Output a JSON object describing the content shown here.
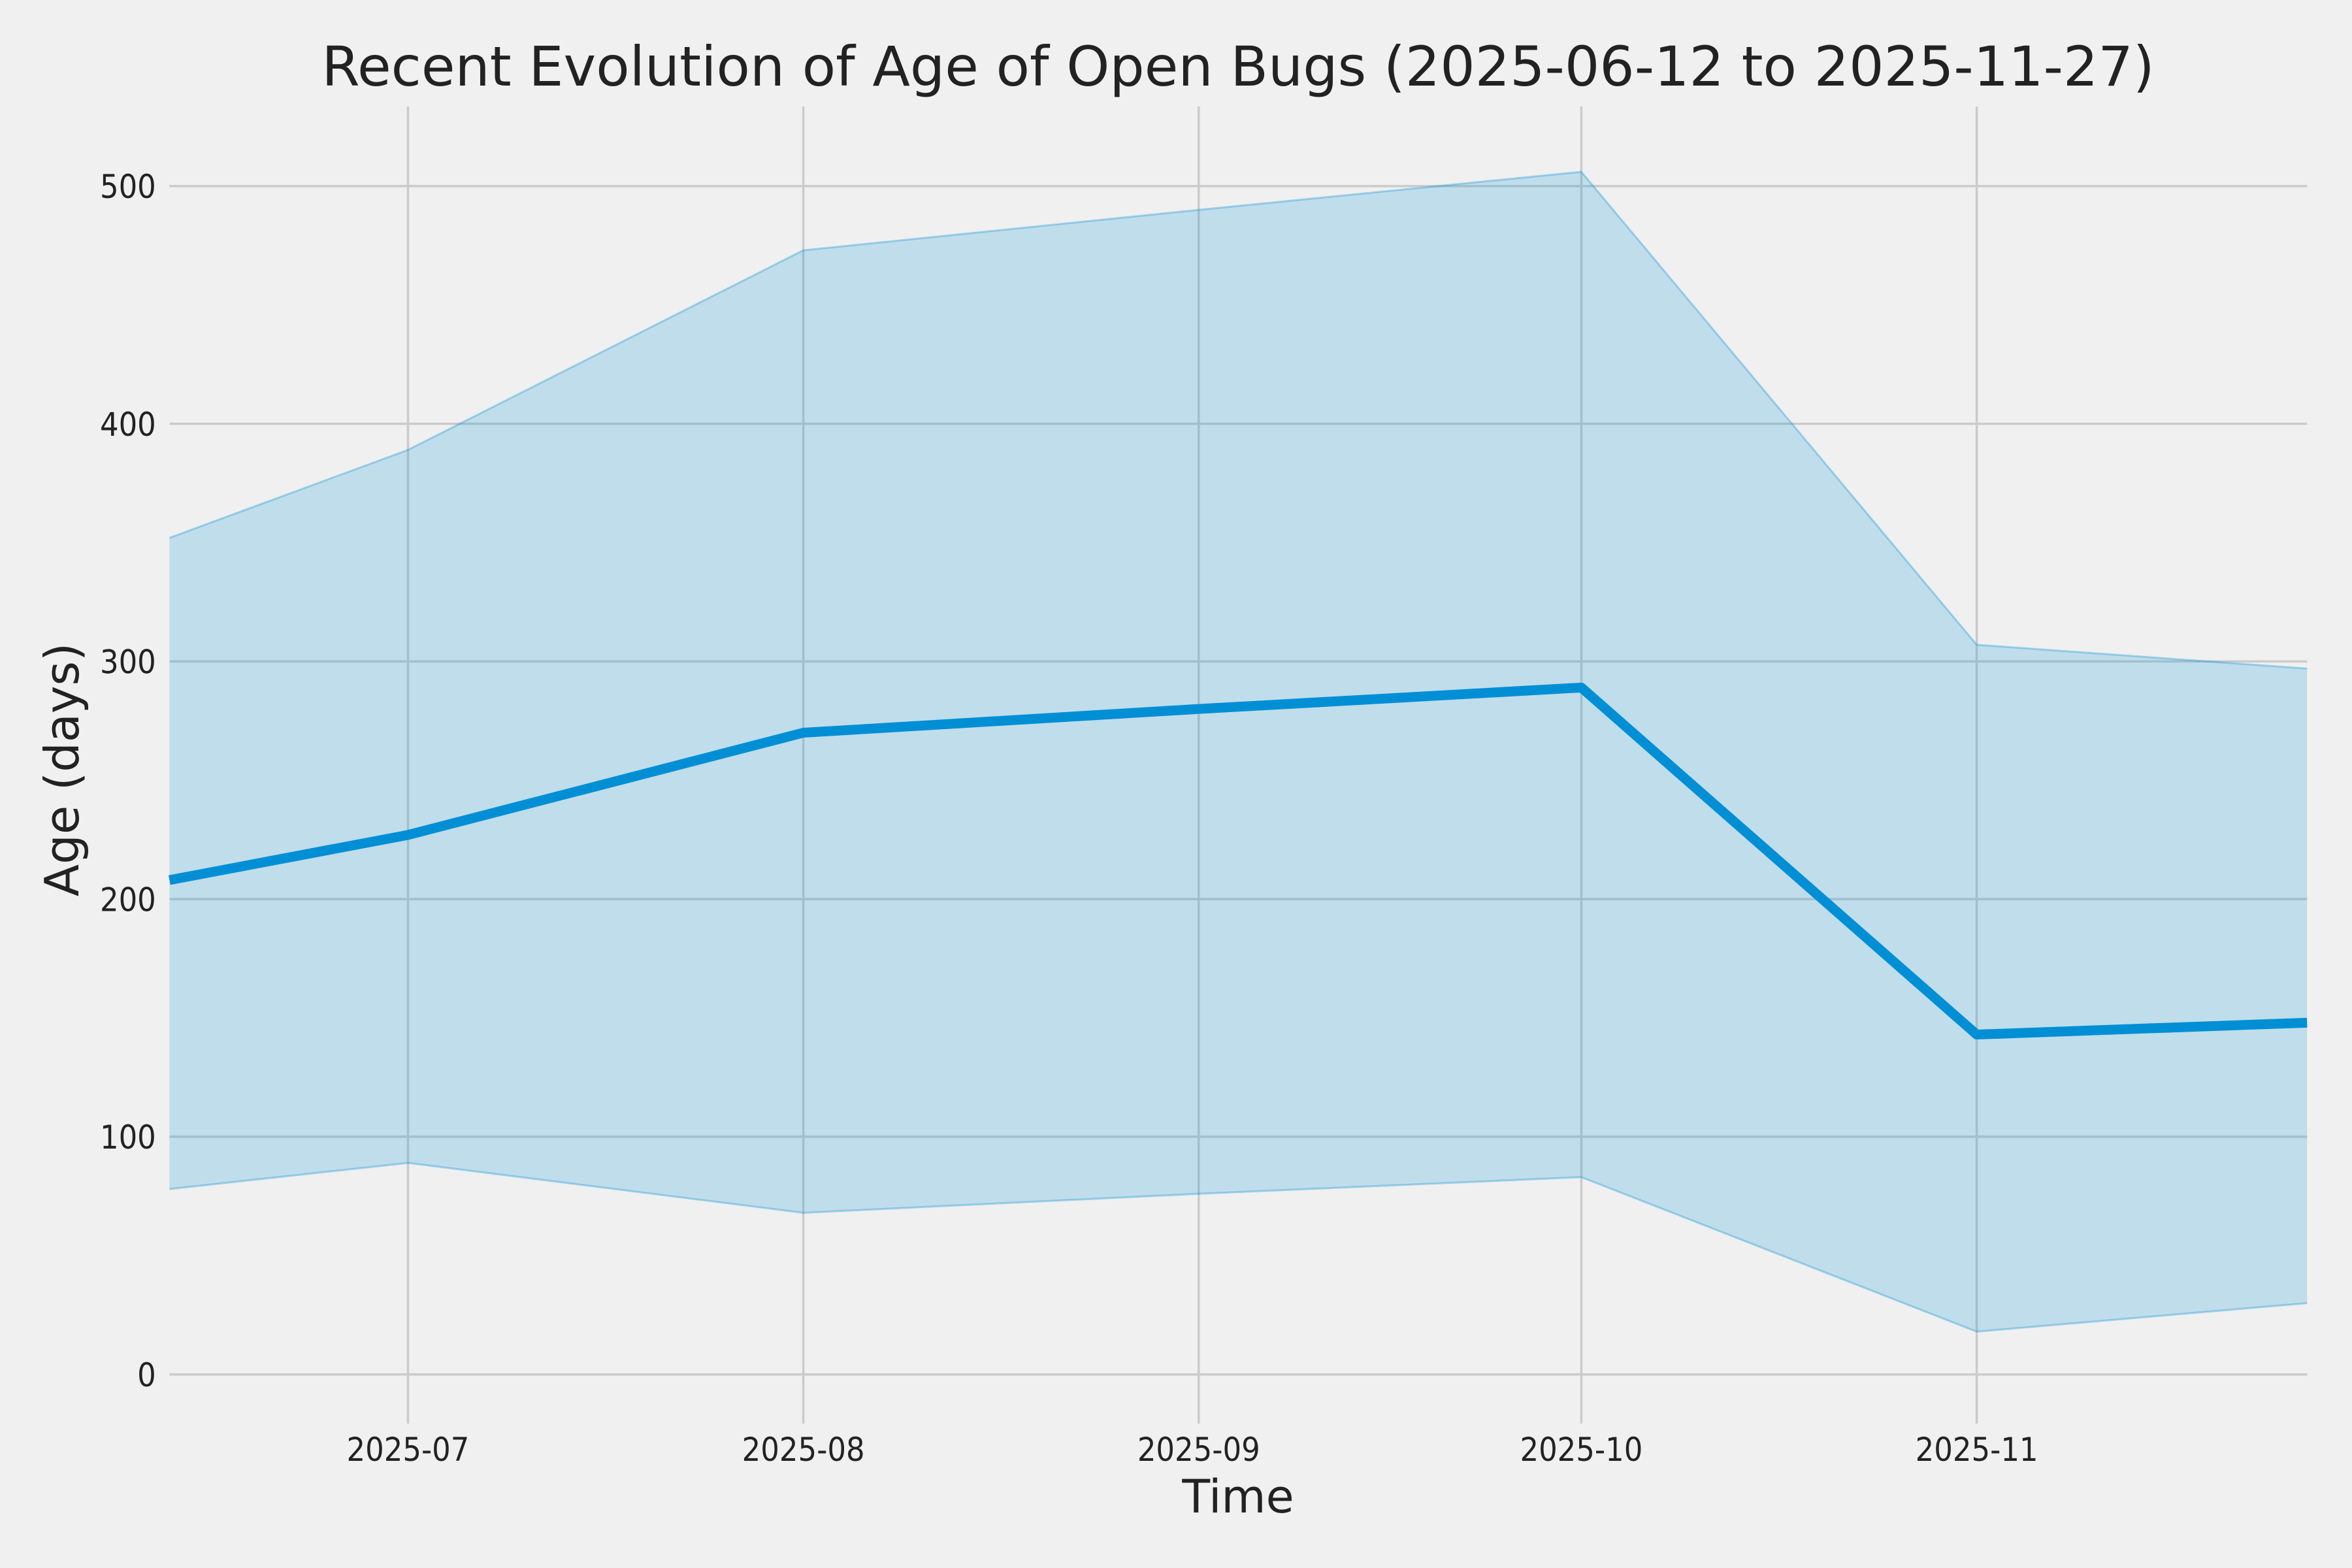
{
  "chart_data": {
    "type": "line",
    "title": "Recent Evolution of Age of Open Bugs (2025-06-12 to 2025-11-27)",
    "xlabel": "Time",
    "ylabel": "Age (days)",
    "grid": true,
    "legend": "none",
    "x_dates": [
      "2025-06-12",
      "2025-07-01",
      "2025-08-01",
      "2025-09-01",
      "2025-10-01",
      "2025-11-01",
      "2025-11-27"
    ],
    "x_day_offsets": [
      0,
      18.7,
      49.7,
      80.7,
      110.7,
      141.7,
      167.6
    ],
    "series": [
      {
        "name": "age_median",
        "role": "line",
        "values": [
          208,
          227,
          270,
          280,
          289,
          143,
          148
        ]
      },
      {
        "name": "age_band_upper",
        "role": "band-upper",
        "values": [
          352,
          389,
          473,
          490,
          506,
          307,
          297
        ]
      },
      {
        "name": "age_band_lower",
        "role": "band-lower",
        "values": [
          78,
          89,
          68,
          76,
          83,
          18,
          30
        ]
      }
    ],
    "x_ticks": [
      {
        "label": "2025-07",
        "day": 18.7
      },
      {
        "label": "2025-08",
        "day": 49.7
      },
      {
        "label": "2025-09",
        "day": 80.7
      },
      {
        "label": "2025-10",
        "day": 110.7
      },
      {
        "label": "2025-11",
        "day": 141.7
      }
    ],
    "y_ticks": [
      {
        "label": "0",
        "value": 0
      },
      {
        "label": "100",
        "value": 100
      },
      {
        "label": "200",
        "value": 200
      },
      {
        "label": "300",
        "value": 300
      },
      {
        "label": "400",
        "value": 400
      },
      {
        "label": "500",
        "value": 500
      }
    ],
    "xlim_days": [
      0,
      167.6
    ],
    "ylim": [
      -20.7,
      533.5
    ],
    "colors": {
      "line": "#008fd5",
      "band_fill": "rgba(0,143,213,0.2)",
      "band_edge": "rgba(0,143,213,0.32)",
      "grid": "#cbcbcb",
      "background": "#f0f0f0",
      "text": "#222222"
    }
  }
}
